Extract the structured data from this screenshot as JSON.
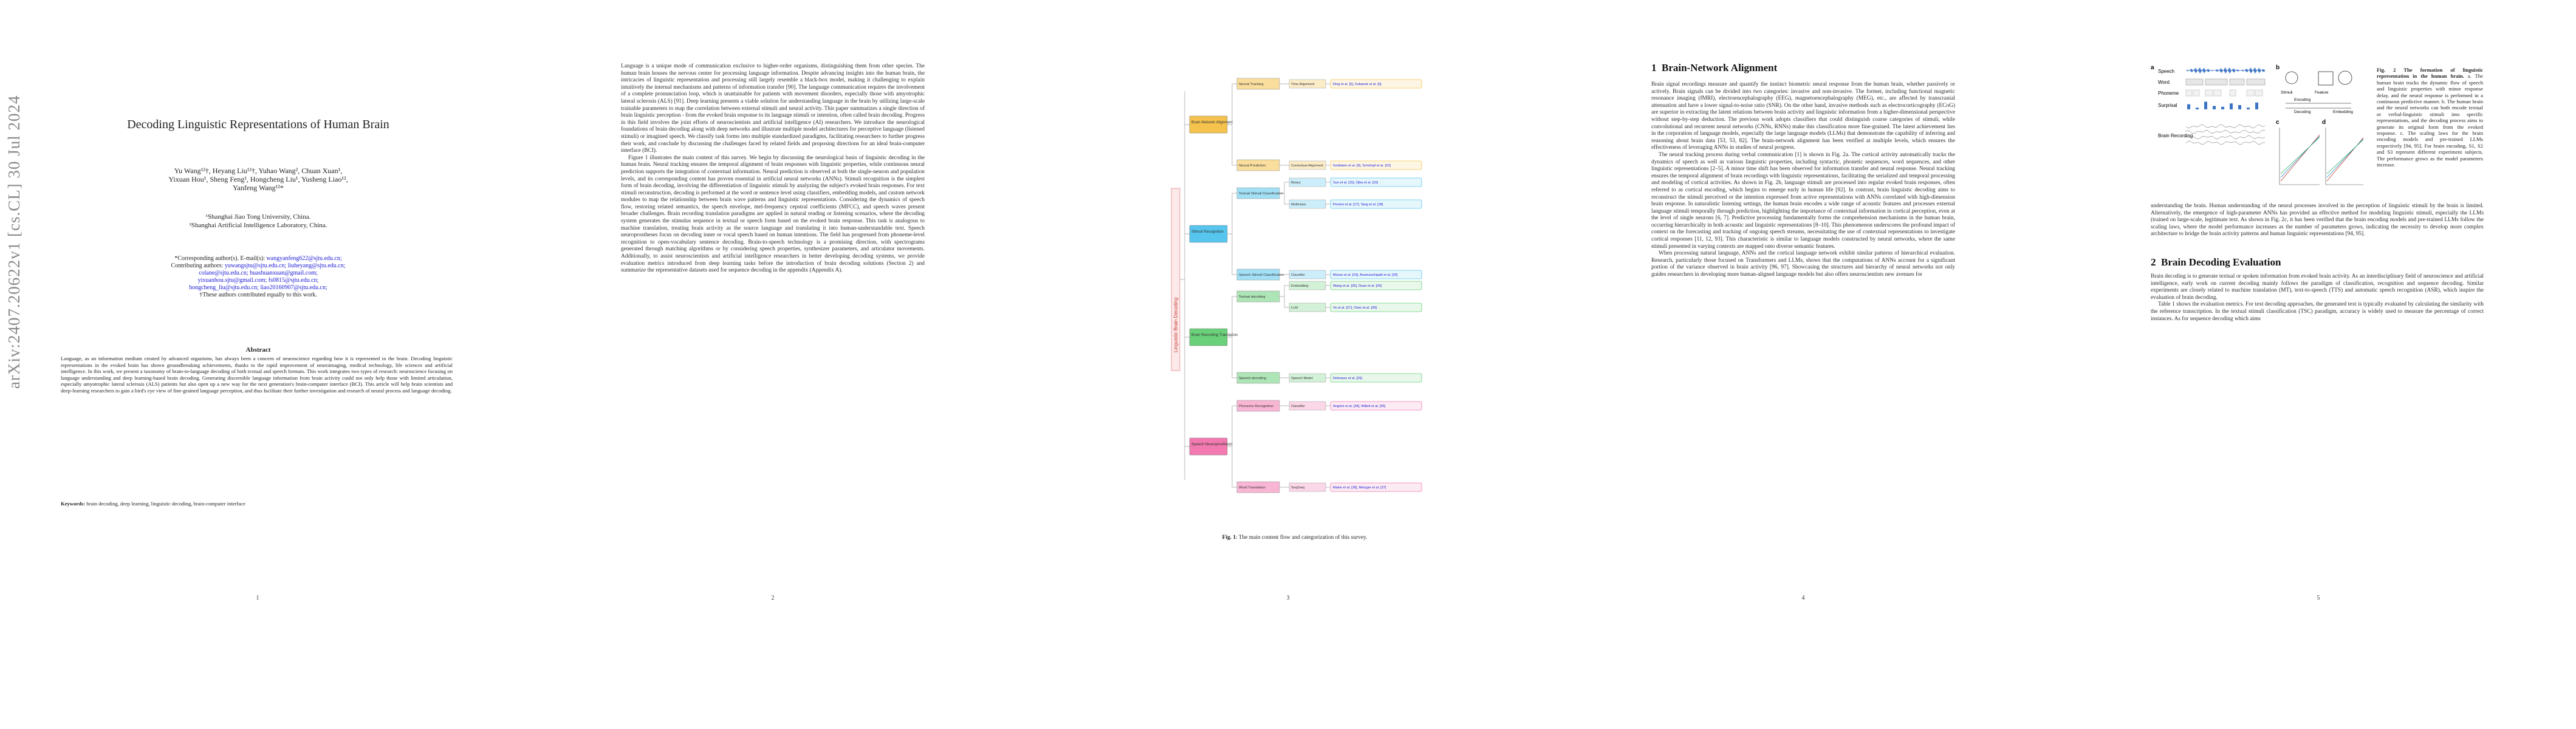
{
  "page1": {
    "arxiv_id": "arXiv:2407.20622v1  [cs.CL]  30 Jul 2024",
    "title": "Decoding Linguistic Representations of Human Brain",
    "authors_line1": "Yu Wang¹²†, Heyang Liu¹²†, Yuhao Wang², Chuan Xuan¹,",
    "authors_line2": "Yixuan Hou¹, Sheng Feng¹, Hongcheng Liu¹, Yusheng Liao¹²,",
    "authors_line3": "Yanfeng Wang¹²*",
    "affil1": "¹Shanghai Jiao Tong University, China.",
    "affil2": "²Shanghai Artificial Intelligence Laboratory, China.",
    "corresponding_prefix": "*Corresponding author(s). E-mail(s): ",
    "corresponding_email": "wangyanfeng622@sjtu.edu.cn;",
    "contrib_prefix": "Contributing authors: ",
    "contrib_email1": "yuwangsjtu@sjtu.edu.cn; liuheyang@sjtu.edu.cn;",
    "contrib_email2": "colane@sjtu.edu.cn; huashuanxuan@gmail.com;",
    "contrib_email3": "yixuanhou.sjtu@gmail.com; fs0815@sjtu.edu.cn;",
    "contrib_email4": "hongcheng_liu@sjtu.edu.cn; liao20160907@sjtu.edu.cn;",
    "equal": "†These authors contributed equally to this work.",
    "abstract_heading": "Abstract",
    "abstract": "Language, as an information medium created by advanced organisms, has always been a concern of neuroscience regarding how it is represented in the brain. Decoding linguistic representations in the evoked brain has shown groundbreaking achievements, thanks to the rapid improvement of neuroimaging, medical technology, life sciences and artificial intelligence. In this work, we present a taxonomy of brain-to-language decoding of both textual and speech formats. This work integrates two types of research: neuroscience focusing on language understanding and deep learning-based brain decoding. Generating discernible language information from brain activity could not only help those with limited articulation, especially amyotrophic lateral sclerosis (ALS) patients but also open up a new way for the next generation's brain-computer interface (BCI). This article will help brain scientists and deep-learning researchers to gain a bird's eye view of fine-grained language perception, and thus facilitate their further investigation and research of neural process and language decoding.",
    "keywords_label": "Keywords:",
    "keywords": " brain decoding, deep learning, linguistic decoding, brain-computer interface",
    "page_number": "1"
  },
  "page2": {
    "para1": "Language is a unique mode of communication exclusive to higher-order organisms, distinguishing them from other species. The human brain houses the nervous center for processing language information. Despite advancing insights into the human brain, the intricacies of linguistic representation and processing still largely resemble a black-box model, making it challenging to explain intuitively the internal mechanisms and patterns of information transfer [90]. The language communication requires the involvement of a complete pronunciation loop, which is unattainable for patients with movement disorders, especially those with amyotrophic lateral sclerosis (ALS) [91]. Deep learning presents a viable solution for understanding language in the brain by utilizing large-scale trainable parameters to map the correlation between external stimuli and neural activity. This paper summarizes a single direction of brain linguistic perception - from the evoked brain response to its language stimuli or intention, often called brain decoding. Progress in this field involves the joint efforts of neuroscientists and artificial intelligence (AI) researchers. We introduce the neurological foundations of brain decoding along with deep networks and illustrate multiple model architectures for perceptive language (listened stimuli) or imagined speech. We classify task forms into multiple standardized paradigms, facilitating researchers to further progress their work, and conclude by discussing the challenges faced by related fields and proposing directions for an ideal brain-computer interface (BCI).",
    "para2": "Figure 1 illustrates the main content of this survey. We begin by discussing the neurological basis of linguistic decoding in the human brain. Neural tracking ensures the temporal alignment of brain responses with linguistic properties, while continuous neural prediction supports the integration of contextual information. Neural prediction is observed at both the single-neuron and population levels, and its corresponding content has proven essential in artificial neural networks (ANNs). Stimuli recognition is the simplest form of brain decoding, involving the differentiation of linguistic stimuli by analyzing the subject's evoked brain responses. For text stimuli reconstruction, decoding is performed at the word or sentence level using classifiers, embedding models, and custom network modules to map the relationship between brain wave patterns and linguistic representations. Considering the dynamics of speech flow, restoring related semantics, the speech envelope, mel-frequency cepstral coefficients (MFCC), and speech waves present broader challenges. Brain recording translation paradigms are applied in natural reading or listening scenarios, where the decoding system generates the stimulus sequence in textual or speech form based on the evoked brain response. This task is analogous to machine translation, treating brain activity as the source language and translating it into human-understandable text. Speech neuroprostheses focus on decoding inner or vocal speech based on human intentions. The field has progressed from phoneme-level recognition to open-vocabulary sentence decoding. Brain-to-speech technology is a promising direction, with spectrograms generated through matching algorithms or by considering speech properties, synthesizer parameters, and articulator movements. Additionally, to assist neuroscientists and artificial intelligence researchers in better developing decoding systems, we provide evaluation metrics introduced from deep learning tasks before the introduction of brain decoding solutions (Section 2) and summarize the representative datasets used for sequence decoding in the appendix (Appendix A).",
    "page_number": "2"
  },
  "page3": {
    "root_label": "Linguistic Brain Decoding",
    "groups": [
      {
        "label": "Brain-Network Alignment",
        "color": "#f5c34d",
        "items": [
          {
            "label": "Neural Tracking",
            "subs": [
              {
                "label": "Time Alignment",
                "refs": [
                  "Ding et al. [5], Kubanek et al. [6]"
                ]
              }
            ]
          },
          {
            "label": "Neural Prediction",
            "subs": [
              {
                "label": "Contextual Alignment",
                "refs": [
                  "Goldstein et al. [9], Schrimpf et al. [10]"
                ]
              }
            ]
          }
        ]
      },
      {
        "label": "Stimuli Recognition",
        "color": "#57c6ee",
        "items": [
          {
            "label": "Textual Stimuli Classification",
            "subs": [
              {
                "label": "Binary",
                "refs": [
                  "Sun et al. [15], Ojha et al. [16]"
                ]
              },
              {
                "label": "Multiclass",
                "refs": [
                  "Pereira et al. [17], Tang et al. [18]"
                ]
              }
            ]
          },
          {
            "label": "Speech Stimuli Classification",
            "subs": [
              {
                "label": "Classifier",
                "refs": [
                  "Moses et al. [19], Anumanchipalli et al. [20]"
                ]
              }
            ]
          }
        ]
      },
      {
        "label": "Brain Recording Translation",
        "color": "#6ad07a",
        "items": [
          {
            "label": "Textual decoding",
            "subs": [
              {
                "label": "Embedding",
                "refs": [
                  "Wang et al. [25], Duan et al. [26]"
                ]
              },
              {
                "label": "LLM",
                "refs": [
                  "Ye et al. [27], Chen et al. [28]"
                ]
              }
            ]
          },
          {
            "label": "Speech decoding",
            "subs": [
              {
                "label": "Speech Model",
                "refs": [
                  "Defossez et al. [29]"
                ]
              }
            ]
          }
        ]
      },
      {
        "label": "Speech Neuroprosthesis",
        "color": "#f27ab0",
        "items": [
          {
            "label": "Phoneme Recognition",
            "subs": [
              {
                "label": "Classifier",
                "refs": [
                  "Angrick et al. [34], Willett et al. [35]"
                ]
              }
            ]
          },
          {
            "label": "Word Translation",
            "subs": [
              {
                "label": "Seq2seq",
                "refs": [
                  "Makin et al. [36], Metzger et al. [37]"
                ]
              }
            ]
          }
        ]
      }
    ],
    "caption_label": "Fig. 1",
    "caption_text": ": The main content flow and categorization of this survey.",
    "page_number": "3"
  },
  "page4": {
    "section_number": "1",
    "section_title": "Brain-Network Alignment",
    "para1": "Brain signal recordings measure and quantify the instinct biometric neural response from the human brain, whether passively or actively. Brain signals can be divided into two categories: invasive and non-invasive. The former, including functional magnetic resonance imaging (fMRI), electroencephalography (EEG), magnetoencephalography (MEG), etc., are affected by transcranial attenuation and have a lower signal-to-noise ratio (SNR). On the other hand, invasive methods such as electrocorticography (ECoG) are superior in extracting the latent relations between brain activity and linguistic information from a higher-dimensional perspective without step-by-step deduction. The previous work adopts classifiers that could distinguish coarse categories of stimuli, while convolutional and recurrent neural networks (CNNs, RNNs) make this classification more fine-grained. The latest achievement lies in the corporation of language models, especially the large language models (LLMs) that demonstrate the capability of inferring and reasoning about brain data [53, 53, 82]. The brain-network alignment has been verified at multiple levels, which ensures the effectiveness of leveraging ANNs in studies of neural progress.",
    "para2": "The neural tracking process during verbal communication [1] is shown in Fig. 2a. The cortical activity automatically tracks the dynamics of speech as well as various linguistic properties, including syntactic, phonetic sequences, word sequences, and other linguistic representations [2–5]. A minor time shift has been observed for information transfer and neural response. Neural tracking ensures the temporal alignment of brain recordings with linguistic representations, facilitating the serialized and temporal processing and modeling of cortical activities. As shown in Fig. 2b, language stimuli are processed into regular evoked brain responses, often referred to as cortical encoding, which begins to emerge early in human life [92]. In contrast, brain linguistic decoding aims to reconstruct the stimuli perceived or the intention expressed from active representations with ANNs correlated with high-dimension brain response. In naturalistic listening settings, the human brain encodes a wide range of acoustic features and processes external language stimuli temporally through prediction, highlighting the importance of contextual information in cortical perception, even at the level of single neurons [6, 7]. Predictive processing fundamentally forms the comprehension mechanisms in the human brain, occurring hierarchically in both acoustic and linguistic representations [8–10]. This phenomenon underscores the profound impact of context on the forecasting and tracking of ongoing speech streams, necessitating the use of contextual representations to investigate cortical responses [11, 12, 93]. This characteristic is similar to language models constructed by neural networks, where the same stimuli presented in varying contexts are mapped onto diverse semantic features.",
    "para3": "When processing natural language, ANNs and the cortical language network exhibit similar patterns of hierarchical evaluation. Research, particularly those focused on Transformers and LLMs, shows that the computations of ANNs account for a significant portion of the variance observed in brain activity [96, 97]. Showcasing the structures and hierarchy of neural networks not only guides researchers in developing more human-aligned language models but also offers neuroscientists new avenues for",
    "page_number": "4"
  },
  "page5": {
    "fig_labels": {
      "a": "a",
      "b": "b",
      "c": "c",
      "d": "d"
    },
    "row_labels": [
      "Speech",
      "Word",
      "Phoneme",
      "Surprisal",
      "Brain Recording"
    ],
    "encoding_label": "Encoding",
    "decoding_label": "Decoding",
    "embedding_label": "Embedding",
    "stimuli_label": "Stimuli",
    "feature_label": "Feature",
    "caption_label": "Fig. 2",
    "caption_title": " The formation of linguistic representation in the human brain.",
    "caption_text": " a. The human brain tracks the dynamic flow of speech and linguistic properties with minor response delay, and the neural response is performed in a continuous predictive manner. b. The human brain and the neural networks can both encode textual or verbal-linguistic stimuli into specific representations, and the decoding process aims to generate its original form from the evoked response. c. The scaling laws for the brain encoding models and pre-trained LLMs respectively [94, 95]. For brain encoding, S1, S2 and S3 represent different experiment subjects. The performance grows as the model parameters increase.",
    "para1": "understanding the brain. Human understanding of the neural processes involved in the perception of linguistic stimuli by the brain is limited. Alternatively, the emergence of high-parameter ANNs has provided an effective method for modeling linguistic stimuli, especially the LLMs (trained on large-scale, legitimate text. As shown in Fig. 2c, it has been verified that the brain encoding models and pre-trained LLMs follow the scaling laws, where the model performance increases as the number of parameters grows, indicating the necessity to develop more complex architecture to bridge the brain activity patterns and human linguistic representations [94, 95].",
    "section_number": "2",
    "section_title": "Brain Decoding Evaluation",
    "para2": "Brain decoding is to generate textual or spoken information from evoked brain activity. As an interdisciplinary field of neuroscience and artificial intelligence, early work on current decoding mainly follows the paradigm of classification, recognition and sequence decoding. Similar experiments are closely related to machine translation (MT), text-to-speech (TTS) and automatic speech recognition (ASR), which inspire the evaluation of brain decoding.",
    "para3": "Table 1 shows the evaluation metrics. For text decoding approaches, the generated text is typically evaluated by calculating the similarity with the reference transcription. In the textual stimuli classification (TSC) paradigm, accuracy is widely used to measure the percentage of correct instances. As for sequence decoding which aims",
    "page_number": "5"
  }
}
